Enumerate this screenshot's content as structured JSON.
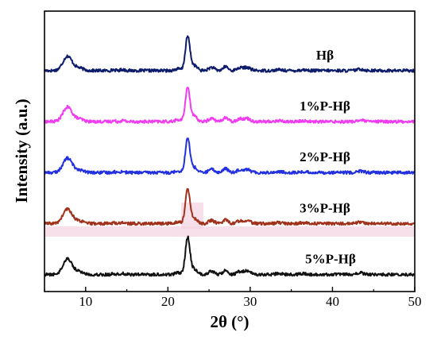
{
  "chart_data": {
    "type": "line",
    "title": "",
    "xlabel": "2θ (°)",
    "ylabel": "Intensity (a.u.)",
    "xlim": [
      5,
      50
    ],
    "x_ticks": [
      10,
      20,
      30,
      40,
      50
    ],
    "x_tick_labels": [
      "10",
      "20",
      "30",
      "40",
      "50"
    ],
    "y_ticks_shown": false,
    "grid": false,
    "legend": "none",
    "peaks": [
      {
        "center": 7.8,
        "height": 1.0,
        "width": 0.55
      },
      {
        "center": 9.2,
        "height": 0.18,
        "width": 0.5
      },
      {
        "center": 13.4,
        "height": 0.06,
        "width": 0.2
      },
      {
        "center": 14.5,
        "height": 0.08,
        "width": 0.25
      },
      {
        "center": 21.2,
        "height": 0.12,
        "width": 0.35
      },
      {
        "center": 22.4,
        "height": 2.35,
        "width": 0.28
      },
      {
        "center": 23.2,
        "height": 0.35,
        "width": 0.35
      },
      {
        "center": 25.3,
        "height": 0.22,
        "width": 0.35
      },
      {
        "center": 27.0,
        "height": 0.28,
        "width": 0.3
      },
      {
        "center": 28.7,
        "height": 0.18,
        "width": 0.35
      },
      {
        "center": 29.6,
        "height": 0.22,
        "width": 0.4
      },
      {
        "center": 33.5,
        "height": 0.06,
        "width": 0.4
      },
      {
        "center": 36.5,
        "height": 0.05,
        "width": 0.4
      },
      {
        "center": 43.4,
        "height": 0.1,
        "width": 0.4
      }
    ],
    "series": [
      {
        "name": "Hβ",
        "color": "#0d1b6b",
        "baseline": 5.2,
        "scale": 1.0
      },
      {
        "name": "1%P-Hβ",
        "color": "#f03cf0",
        "baseline": 4.0,
        "scale": 1.0
      },
      {
        "name": "2%P-Hβ",
        "color": "#2230e0",
        "baseline": 2.8,
        "scale": 1.0
      },
      {
        "name": "3%P-Hβ",
        "color": "#a0321c",
        "baseline": 1.6,
        "scale": 1.0
      },
      {
        "name": "5%P-Hβ",
        "color": "#111111",
        "baseline": 0.4,
        "scale": 1.1
      }
    ]
  }
}
